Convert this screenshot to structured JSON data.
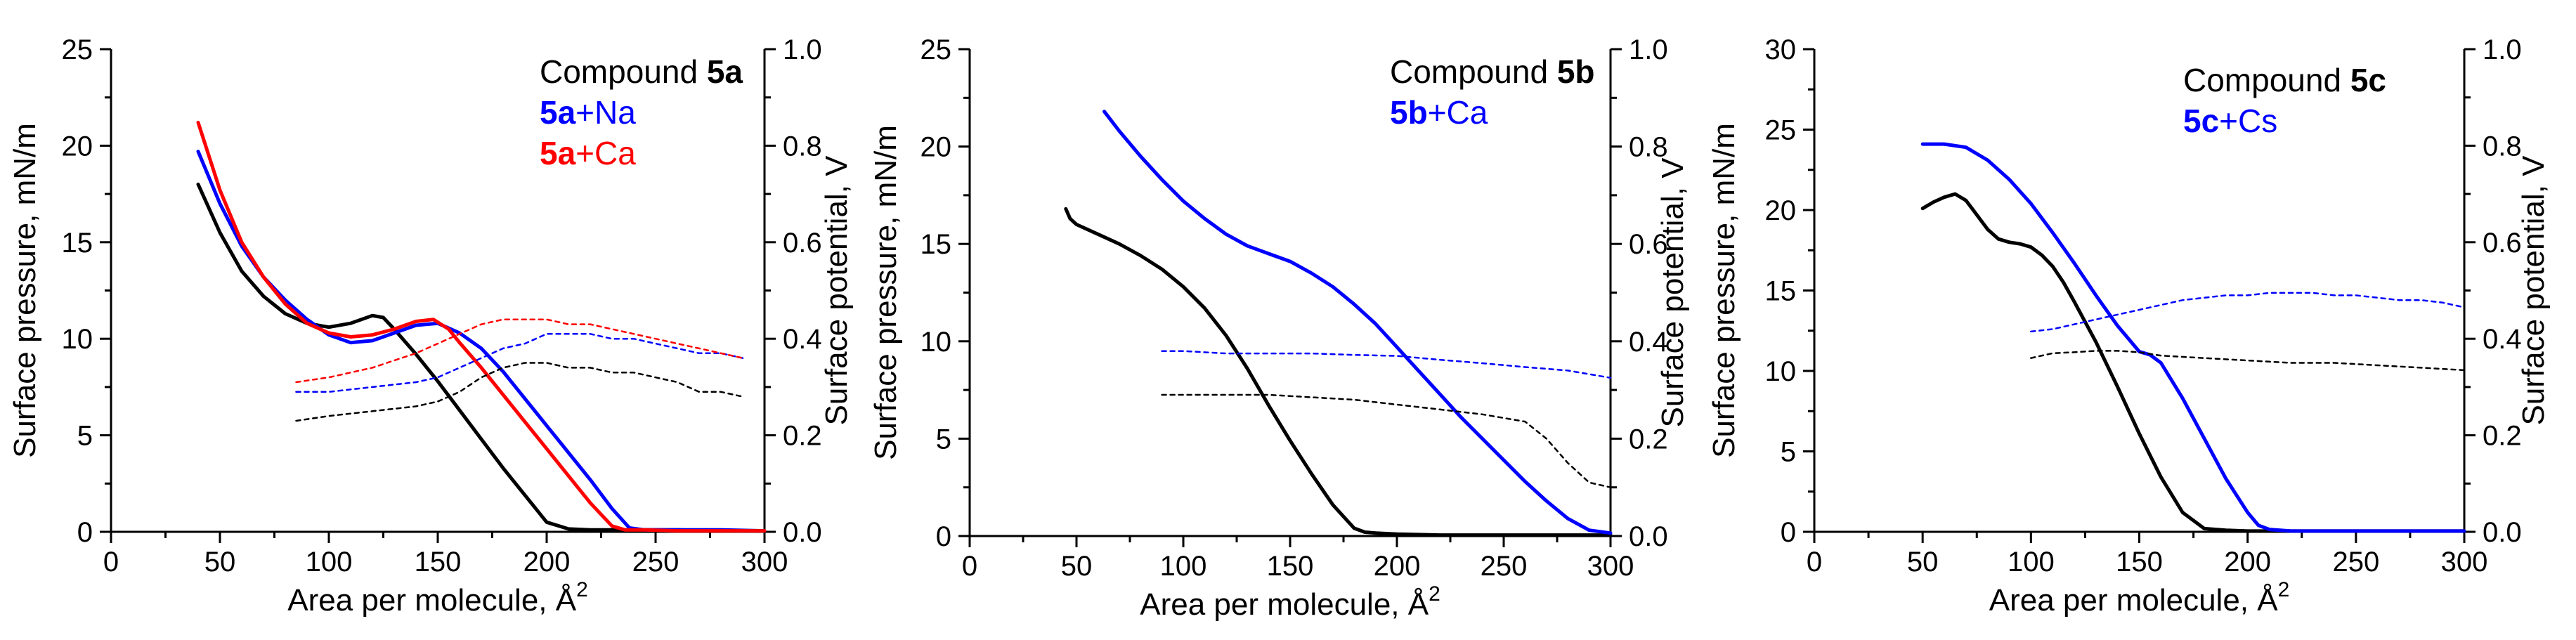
{
  "chart_data": [
    {
      "type": "line",
      "xlabel": "Area per molecule, Å",
      "xlabel_superscript": "2",
      "ylabel": "Surface pressure, mN/m",
      "y2label": "Surface potential, V",
      "xlim": [
        0,
        300
      ],
      "ylim": [
        0,
        25
      ],
      "y2lim": [
        0,
        1.0
      ],
      "xticks": [
        "0",
        "50",
        "100",
        "150",
        "200",
        "250",
        "300"
      ],
      "yticks": [
        "0",
        "5",
        "10",
        "15",
        "20",
        "25"
      ],
      "y2ticks": [
        "0.0",
        "0.2",
        "0.4",
        "0.6",
        "0.8",
        "1.0"
      ],
      "legend_position": "top-right",
      "legend": [
        {
          "label": "Compound ",
          "bold": "5a",
          "rest": "",
          "color": "#000000"
        },
        {
          "label": "",
          "bold": "5a",
          "rest": "+Na",
          "color": "#0000ff"
        },
        {
          "label": "",
          "bold": "5a",
          "rest": "+Ca",
          "color": "#ff0000"
        }
      ],
      "series": [
        {
          "name": "5a pressure",
          "axis": "left",
          "color": "#000000",
          "dashed": false,
          "x": [
            40,
            50,
            60,
            70,
            80,
            90,
            100,
            110,
            120,
            125,
            130,
            140,
            150,
            160,
            170,
            180,
            190,
            200,
            210,
            220,
            240,
            260,
            280,
            300
          ],
          "y": [
            18,
            15.5,
            13.5,
            12.2,
            11.3,
            10.8,
            10.6,
            10.8,
            11.2,
            11.1,
            10.5,
            9.2,
            7.8,
            6.3,
            4.8,
            3.3,
            1.9,
            0.5,
            0.15,
            0.1,
            0.1,
            0.1,
            0.05,
            0.05
          ]
        },
        {
          "name": "5a+Na pressure",
          "axis": "left",
          "color": "#0000ff",
          "dashed": false,
          "x": [
            40,
            50,
            60,
            70,
            80,
            90,
            100,
            110,
            120,
            130,
            140,
            150,
            160,
            170,
            180,
            190,
            200,
            210,
            220,
            230,
            238,
            245,
            260,
            280,
            300
          ],
          "y": [
            19.7,
            17,
            14.8,
            13.2,
            12,
            11,
            10.2,
            9.8,
            9.9,
            10.3,
            10.7,
            10.8,
            10.3,
            9.5,
            8.3,
            6.9,
            5.5,
            4.1,
            2.7,
            1.2,
            0.2,
            0.1,
            0.1,
            0.1,
            0.05
          ]
        },
        {
          "name": "5a+Ca pressure",
          "axis": "left",
          "color": "#ff0000",
          "dashed": false,
          "x": [
            40,
            50,
            60,
            70,
            80,
            90,
            100,
            110,
            120,
            130,
            140,
            148,
            155,
            160,
            170,
            180,
            190,
            200,
            210,
            220,
            230,
            236,
            245,
            260,
            300
          ],
          "y": [
            21.2,
            17.7,
            15,
            13.2,
            11.8,
            10.8,
            10.3,
            10.1,
            10.2,
            10.5,
            10.9,
            11.0,
            10.5,
            9.8,
            8.5,
            7.1,
            5.7,
            4.3,
            2.9,
            1.5,
            0.3,
            0.1,
            0.1,
            0.05,
            0.05
          ]
        },
        {
          "name": "5a potential",
          "axis": "right",
          "color": "#000000",
          "dashed": true,
          "x": [
            85,
            100,
            120,
            140,
            150,
            160,
            170,
            180,
            190,
            200,
            210,
            220,
            230,
            240,
            250,
            260,
            270,
            280,
            290
          ],
          "y": [
            0.23,
            0.24,
            0.25,
            0.26,
            0.27,
            0.29,
            0.32,
            0.34,
            0.35,
            0.35,
            0.34,
            0.34,
            0.33,
            0.33,
            0.32,
            0.31,
            0.29,
            0.29,
            0.28
          ]
        },
        {
          "name": "5a+Na potential",
          "axis": "right",
          "color": "#0000ff",
          "dashed": true,
          "x": [
            85,
            100,
            120,
            140,
            150,
            160,
            170,
            180,
            190,
            200,
            210,
            220,
            230,
            240,
            250,
            260,
            270,
            280,
            290
          ],
          "y": [
            0.29,
            0.29,
            0.3,
            0.31,
            0.32,
            0.34,
            0.36,
            0.38,
            0.39,
            0.41,
            0.41,
            0.41,
            0.4,
            0.4,
            0.39,
            0.38,
            0.37,
            0.37,
            0.36
          ]
        },
        {
          "name": "5a+Ca potential",
          "axis": "right",
          "color": "#ff0000",
          "dashed": true,
          "x": [
            85,
            100,
            120,
            140,
            150,
            160,
            170,
            180,
            190,
            200,
            210,
            220,
            230,
            240,
            250,
            260,
            270,
            280,
            290
          ],
          "y": [
            0.31,
            0.32,
            0.34,
            0.37,
            0.39,
            0.41,
            0.43,
            0.44,
            0.44,
            0.44,
            0.43,
            0.43,
            0.42,
            0.41,
            0.4,
            0.39,
            0.38,
            0.37,
            0.36
          ]
        }
      ]
    },
    {
      "type": "line",
      "xlabel": "Area per molecule, Å",
      "xlabel_superscript": "2",
      "ylabel": "Surface pressure, mN/m",
      "y2label": "Surface potential, V",
      "xlim": [
        0,
        300
      ],
      "ylim": [
        0,
        25
      ],
      "y2lim": [
        0,
        1.0
      ],
      "xticks": [
        "0",
        "50",
        "100",
        "150",
        "200",
        "250",
        "300"
      ],
      "yticks": [
        "0",
        "5",
        "10",
        "15",
        "20",
        "25"
      ],
      "y2ticks": [
        "0.0",
        "0.2",
        "0.4",
        "0.6",
        "0.8",
        "1.0"
      ],
      "legend_position": "top-right",
      "legend": [
        {
          "label": "Compound ",
          "bold": "5b",
          "rest": "",
          "color": "#000000"
        },
        {
          "label": "",
          "bold": "5b",
          "rest": "+Ca",
          "color": "#0000ff"
        }
      ],
      "series": [
        {
          "name": "5b pressure",
          "axis": "left",
          "color": "#000000",
          "dashed": false,
          "x": [
            45,
            47,
            50,
            60,
            70,
            80,
            90,
            100,
            110,
            120,
            130,
            140,
            150,
            160,
            170,
            180,
            185,
            190,
            200,
            220,
            250,
            300
          ],
          "y": [
            16.8,
            16.3,
            16.0,
            15.5,
            15.0,
            14.4,
            13.7,
            12.8,
            11.7,
            10.3,
            8.6,
            6.7,
            4.9,
            3.2,
            1.6,
            0.4,
            0.2,
            0.15,
            0.1,
            0.05,
            0.05,
            0.05
          ]
        },
        {
          "name": "5b+Ca pressure",
          "axis": "left",
          "color": "#0000ff",
          "dashed": false,
          "x": [
            63,
            70,
            80,
            90,
            100,
            110,
            120,
            130,
            140,
            150,
            160,
            170,
            180,
            190,
            200,
            210,
            220,
            230,
            240,
            250,
            260,
            270,
            280,
            290,
            300
          ],
          "y": [
            21.8,
            20.8,
            19.5,
            18.3,
            17.2,
            16.3,
            15.5,
            14.9,
            14.5,
            14.1,
            13.5,
            12.8,
            11.9,
            10.9,
            9.7,
            8.5,
            7.3,
            6.1,
            5.0,
            3.9,
            2.8,
            1.8,
            0.9,
            0.3,
            0.15
          ]
        },
        {
          "name": "5b potential",
          "axis": "right",
          "color": "#000000",
          "dashed": true,
          "x": [
            90,
            100,
            120,
            140,
            160,
            180,
            200,
            220,
            240,
            260,
            270,
            280,
            290,
            300
          ],
          "y": [
            0.29,
            0.29,
            0.29,
            0.29,
            0.285,
            0.28,
            0.27,
            0.26,
            0.25,
            0.235,
            0.2,
            0.15,
            0.11,
            0.1
          ]
        },
        {
          "name": "5b+Ca potential",
          "axis": "right",
          "color": "#0000ff",
          "dashed": true,
          "x": [
            90,
            100,
            120,
            140,
            160,
            180,
            200,
            220,
            240,
            260,
            280,
            300
          ],
          "y": [
            0.38,
            0.38,
            0.375,
            0.375,
            0.375,
            0.372,
            0.37,
            0.362,
            0.355,
            0.347,
            0.34,
            0.325
          ]
        }
      ]
    },
    {
      "type": "line",
      "xlabel": "Area per molecule, Å",
      "xlabel_superscript": "2",
      "ylabel": "Surface pressure, mN/m",
      "y2label": "Surface potential, V",
      "xlim": [
        0,
        300
      ],
      "ylim": [
        0,
        30
      ],
      "y2lim": [
        0,
        1.0
      ],
      "xticks": [
        "0",
        "50",
        "100",
        "150",
        "200",
        "250",
        "300"
      ],
      "yticks": [
        "0",
        "5",
        "10",
        "15",
        "20",
        "25",
        "30"
      ],
      "y2ticks": [
        "0.0",
        "0.2",
        "0.4",
        "0.6",
        "0.8",
        "1.0"
      ],
      "legend_position": "top-right",
      "legend": [
        {
          "label": "Compound ",
          "bold": "5c",
          "rest": "",
          "color": "#000000"
        },
        {
          "label": "",
          "bold": "5c",
          "rest": "+Cs",
          "color": "#0000ff"
        }
      ],
      "series": [
        {
          "name": "5c pressure",
          "axis": "left",
          "color": "#000000",
          "dashed": false,
          "x": [
            50,
            55,
            60,
            65,
            70,
            75,
            80,
            85,
            90,
            95,
            100,
            105,
            110,
            115,
            120,
            130,
            140,
            150,
            160,
            170,
            180,
            190,
            200,
            250,
            300
          ],
          "y": [
            20.1,
            20.5,
            20.8,
            21.0,
            20.6,
            19.7,
            18.8,
            18.2,
            18.0,
            17.9,
            17.7,
            17.2,
            16.5,
            15.5,
            14.3,
            11.8,
            9.0,
            6.1,
            3.4,
            1.2,
            0.2,
            0.1,
            0.05,
            0.05,
            0.05
          ]
        },
        {
          "name": "5c+Cs pressure",
          "axis": "left",
          "color": "#0000ff",
          "dashed": false,
          "x": [
            50,
            60,
            70,
            80,
            90,
            100,
            110,
            120,
            130,
            140,
            150,
            155,
            160,
            170,
            180,
            190,
            200,
            205,
            210,
            220,
            250,
            300
          ],
          "y": [
            24.1,
            24.1,
            23.9,
            23.1,
            21.9,
            20.4,
            18.6,
            16.7,
            14.7,
            12.8,
            11.2,
            11.0,
            10.5,
            8.3,
            5.8,
            3.3,
            1.2,
            0.4,
            0.15,
            0.05,
            0.05,
            0.05
          ]
        },
        {
          "name": "5c potential",
          "axis": "right",
          "color": "#000000",
          "dashed": true,
          "x": [
            100,
            110,
            120,
            130,
            140,
            150,
            160,
            180,
            200,
            220,
            240,
            260,
            280,
            300
          ],
          "y": [
            0.36,
            0.37,
            0.372,
            0.375,
            0.375,
            0.372,
            0.365,
            0.36,
            0.355,
            0.35,
            0.35,
            0.345,
            0.34,
            0.335
          ]
        },
        {
          "name": "5c+Cs potential",
          "axis": "right",
          "color": "#0000ff",
          "dashed": true,
          "x": [
            100,
            110,
            120,
            130,
            140,
            150,
            160,
            170,
            180,
            190,
            200,
            210,
            220,
            230,
            240,
            250,
            260,
            270,
            280,
            290,
            300
          ],
          "y": [
            0.415,
            0.42,
            0.43,
            0.44,
            0.45,
            0.46,
            0.47,
            0.48,
            0.485,
            0.49,
            0.49,
            0.495,
            0.495,
            0.495,
            0.49,
            0.49,
            0.485,
            0.48,
            0.48,
            0.475,
            0.465
          ]
        }
      ]
    }
  ]
}
